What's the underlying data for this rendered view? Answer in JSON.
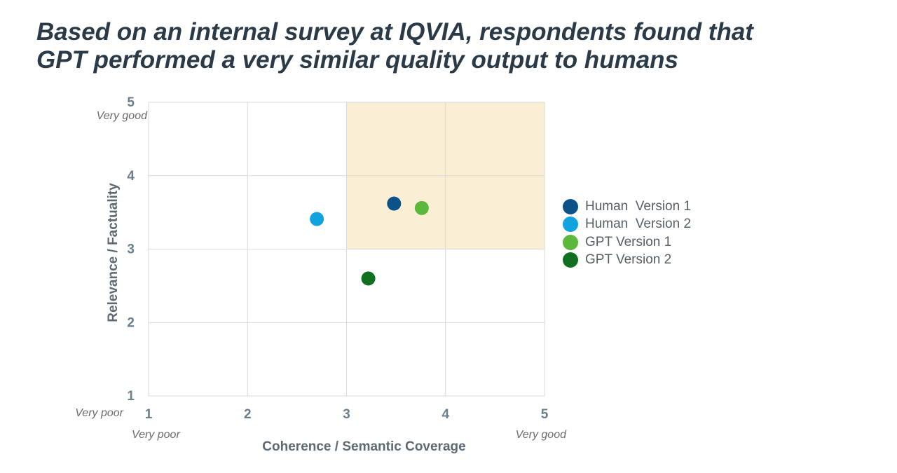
{
  "title": {
    "line1": "Based on an internal survey at IQVIA, respondents found that",
    "line2": "GPT performed a very similar quality output to humans"
  },
  "chart_data": {
    "type": "scatter",
    "xlabel": "Coherence / Semantic Coverage",
    "ylabel": "Relevance / Factuality",
    "xlim": [
      1,
      5
    ],
    "ylim": [
      1,
      5
    ],
    "x_ticks": [
      "1",
      "2",
      "3",
      "4",
      "5"
    ],
    "y_ticks": [
      "1",
      "2",
      "3",
      "4",
      "5"
    ],
    "x_endpoint_labels": {
      "low": "Very poor",
      "high": "Very good"
    },
    "y_endpoint_labels": {
      "low": "Very poor",
      "high": "Very good"
    },
    "grid": true,
    "highlight_region": {
      "x": [
        3,
        5
      ],
      "y": [
        3,
        5
      ],
      "color": "#faefd4"
    },
    "legend_position": "right",
    "series": [
      {
        "name": "Human  Version 1",
        "color": "#0b5288",
        "x": 3.48,
        "y": 3.62
      },
      {
        "name": "Human  Version 2",
        "color": "#10a3e0",
        "x": 2.7,
        "y": 3.41
      },
      {
        "name": "GPT Version 1",
        "color": "#5cb83a",
        "x": 3.76,
        "y": 3.56
      },
      {
        "name": "GPT Version 2",
        "color": "#10701f",
        "x": 3.22,
        "y": 2.6
      }
    ]
  }
}
